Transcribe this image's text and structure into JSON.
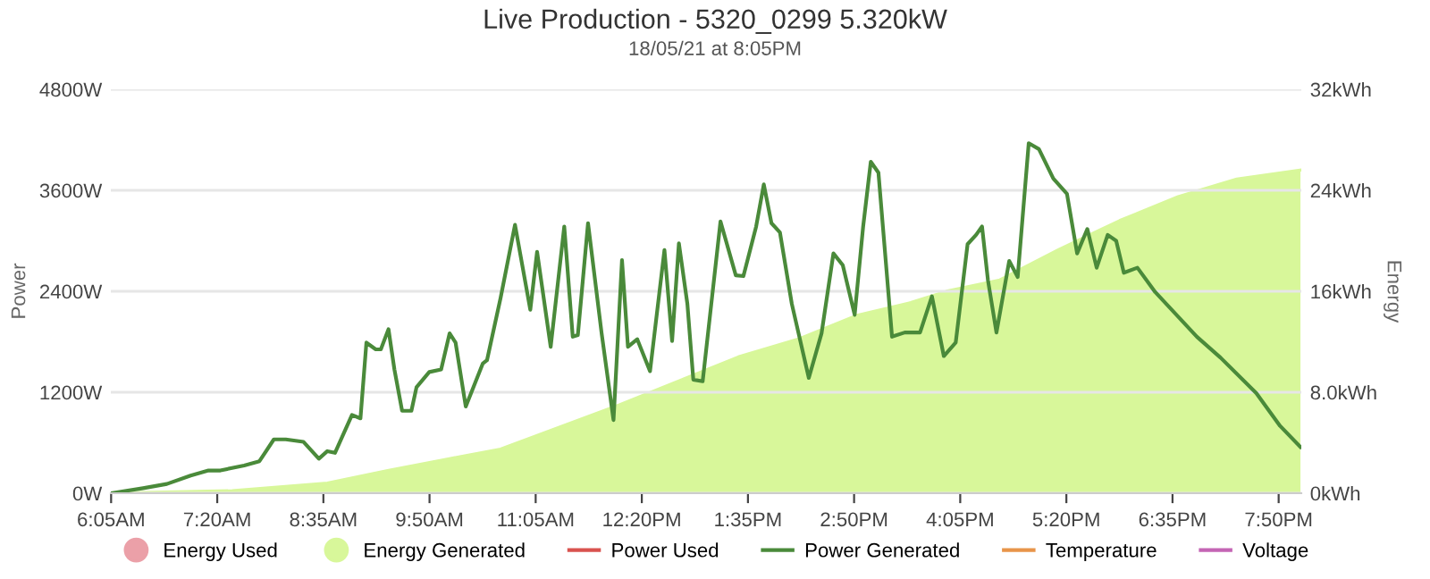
{
  "chart_data": {
    "type": "line",
    "title": "Live Production - 5320_0299 5.320kW",
    "subtitle": "18/05/21 at 8:05PM",
    "ylabel": "Power",
    "y2label": "Energy",
    "xlim": [
      6.08,
      20.1
    ],
    "xticks": [
      {
        "value": 6.0833,
        "label": "6:05AM"
      },
      {
        "value": 7.3333,
        "label": "7:20AM"
      },
      {
        "value": 8.5833,
        "label": "8:35AM"
      },
      {
        "value": 9.8333,
        "label": "9:50AM"
      },
      {
        "value": 11.0833,
        "label": "11:05AM"
      },
      {
        "value": 12.3333,
        "label": "12:20PM"
      },
      {
        "value": 13.5833,
        "label": "1:35PM"
      },
      {
        "value": 14.8333,
        "label": "2:50PM"
      },
      {
        "value": 16.0833,
        "label": "4:05PM"
      },
      {
        "value": 17.3333,
        "label": "5:20PM"
      },
      {
        "value": 18.5833,
        "label": "6:35PM"
      },
      {
        "value": 19.8333,
        "label": "7:50PM"
      }
    ],
    "ylim": [
      0,
      4800
    ],
    "yticks": [
      {
        "value": 0,
        "label": "0W"
      },
      {
        "value": 1200,
        "label": "1200W"
      },
      {
        "value": 2400,
        "label": "2400W"
      },
      {
        "value": 3600,
        "label": "3600W"
      },
      {
        "value": 4800,
        "label": "4800W"
      }
    ],
    "y2lim": [
      0,
      32
    ],
    "y2ticks": [
      {
        "value": 0,
        "label": "0kWh"
      },
      {
        "value": 8,
        "label": "8.0kWh"
      },
      {
        "value": 16,
        "label": "16kWh"
      },
      {
        "value": 24,
        "label": "24kWh"
      },
      {
        "value": 32,
        "label": "32kWh"
      }
    ],
    "grid": "y",
    "legend": "bottom",
    "marker": "none",
    "line_style": "solid",
    "series": [
      {
        "name": "Energy Used",
        "type": "area",
        "axis": "y2",
        "color": "#eba0a8"
      },
      {
        "name": "Energy Generated",
        "type": "area",
        "axis": "y2",
        "color": "#d8f79a",
        "x": [
          6.08,
          7.51,
          8.63,
          9.34,
          10.04,
          10.67,
          12.07,
          13.47,
          14.17,
          14.87,
          15.5,
          15.92,
          16.55,
          17.24,
          17.96,
          18.65,
          19.34,
          20.09
        ],
        "values": [
          0,
          0.2,
          0.8,
          1.8,
          2.7,
          3.5,
          7.0,
          10.8,
          12.2,
          14.1,
          15.1,
          16.0,
          16.9,
          19.3,
          21.6,
          23.5,
          24.9,
          25.6
        ]
      },
      {
        "name": "Power Used",
        "color": "#d9534f"
      },
      {
        "name": "Power Generated",
        "color": "#4a8a3a",
        "x": [
          6.08,
          6.46,
          6.74,
          7.02,
          7.23,
          7.37,
          7.65,
          7.83,
          8.0,
          8.14,
          8.35,
          8.53,
          8.63,
          8.72,
          8.92,
          9.02,
          9.09,
          9.2,
          9.26,
          9.35,
          9.42,
          9.51,
          9.62,
          9.68,
          9.83,
          9.97,
          10.07,
          10.14,
          10.26,
          10.46,
          10.51,
          10.67,
          10.84,
          11.02,
          11.1,
          11.26,
          11.42,
          11.52,
          11.58,
          11.7,
          11.86,
          12.0,
          12.1,
          12.17,
          12.28,
          12.43,
          12.6,
          12.69,
          12.77,
          12.87,
          12.94,
          13.05,
          13.26,
          13.44,
          13.53,
          13.68,
          13.77,
          13.86,
          13.96,
          14.1,
          14.3,
          14.45,
          14.59,
          14.7,
          14.84,
          14.94,
          15.03,
          15.12,
          15.28,
          15.43,
          15.61,
          15.75,
          15.89,
          16.03,
          16.17,
          16.27,
          16.34,
          16.41,
          16.51,
          16.66,
          16.76,
          16.89,
          17.01,
          17.18,
          17.34,
          17.46,
          17.58,
          17.69,
          17.82,
          17.92,
          18.01,
          18.17,
          18.38,
          18.87,
          19.15,
          19.57,
          19.85,
          20.09
        ],
        "values": [
          0,
          60,
          110,
          210,
          270,
          270,
          330,
          380,
          640,
          640,
          610,
          410,
          500,
          480,
          930,
          890,
          1790,
          1710,
          1710,
          1950,
          1470,
          980,
          980,
          1260,
          1440,
          1470,
          1900,
          1790,
          1030,
          1540,
          1580,
          2320,
          3190,
          2180,
          2870,
          1740,
          3170,
          1860,
          1880,
          3210,
          1900,
          870,
          2770,
          1740,
          1830,
          1450,
          2890,
          1810,
          2970,
          2250,
          1350,
          1330,
          3230,
          2590,
          2580,
          3170,
          3670,
          3210,
          3100,
          2250,
          1370,
          1900,
          2850,
          2710,
          2120,
          3170,
          3940,
          3810,
          1860,
          1910,
          1910,
          2340,
          1630,
          1790,
          2960,
          3070,
          3170,
          2530,
          1910,
          2760,
          2570,
          4160,
          4090,
          3740,
          3560,
          2850,
          3140,
          2680,
          3070,
          3000,
          2620,
          2680,
          2390,
          1860,
          1610,
          1190,
          800,
          550
        ]
      },
      {
        "name": "Temperature",
        "color": "#e8954a"
      },
      {
        "name": "Voltage",
        "color": "#c465b4"
      }
    ]
  }
}
